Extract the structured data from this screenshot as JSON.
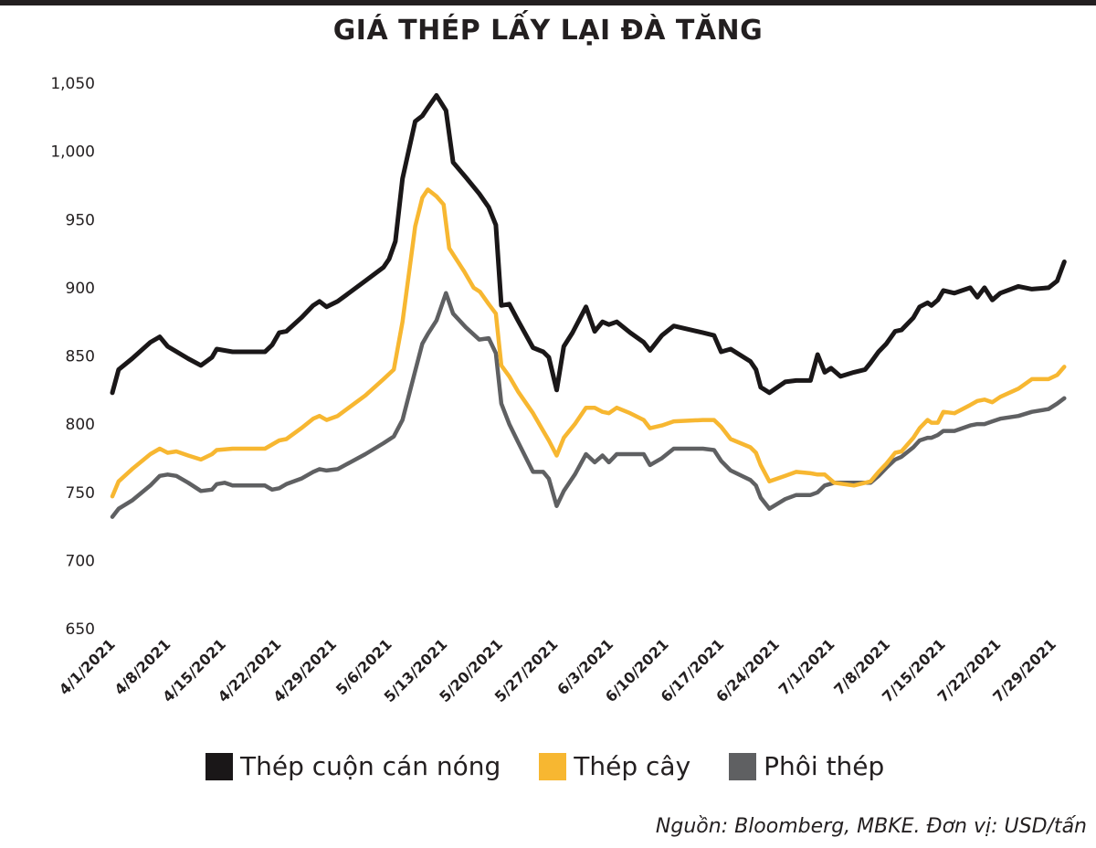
{
  "header": {
    "title": "GIÁ THÉP LẤY LẠI ĐÀ TĂNG"
  },
  "footer": {
    "source": "Nguồn: Bloomberg, MBKE. Đơn vị: USD/tấn"
  },
  "chart_data": {
    "type": "line",
    "title": "GIÁ THÉP LẤY LẠI ĐÀ TĂNG",
    "xlabel": "",
    "ylabel": "",
    "ylim": [
      650,
      1050
    ],
    "yticks": [
      650,
      700,
      750,
      800,
      850,
      900,
      950,
      1000,
      1050
    ],
    "ytick_labels": [
      "650",
      "700",
      "750",
      "800",
      "850",
      "900",
      "950",
      "1,000",
      "1,050"
    ],
    "x_unit": "days since 4/1/2021",
    "xlim": [
      0,
      123
    ],
    "xticks": [
      0,
      7,
      14,
      21,
      28,
      35,
      42,
      49,
      56,
      63,
      70,
      77,
      84,
      91,
      98,
      105,
      112,
      119
    ],
    "xtick_labels": [
      "4/1/2021",
      "4/8/2021",
      "4/15/2021",
      "4/22/2021",
      "4/29/2021",
      "5/6/2021",
      "5/13/2021",
      "5/20/2021",
      "5/27/2021",
      "6/3/2021",
      "6/10/2021",
      "6/17/2021",
      "6/24/2021",
      "7/1/2021",
      "7/8/2021",
      "7/15/2021",
      "7/22/2021",
      "7/29/2021"
    ],
    "grid": false,
    "legend_position": "bottom",
    "series": [
      {
        "name": "Thép cuộn cán nóng",
        "color": "#1a1718",
        "points": [
          [
            0,
            823
          ],
          [
            0.8,
            840
          ],
          [
            2.5,
            848
          ],
          [
            4.8,
            860
          ],
          [
            6,
            864
          ],
          [
            7,
            857
          ],
          [
            9.6,
            848
          ],
          [
            11.2,
            843
          ],
          [
            12.6,
            849
          ],
          [
            13.2,
            855
          ],
          [
            14.2,
            854
          ],
          [
            15.2,
            853
          ],
          [
            19.3,
            853
          ],
          [
            20.2,
            858
          ],
          [
            21.1,
            867
          ],
          [
            22,
            868
          ],
          [
            23.9,
            878
          ],
          [
            25.4,
            887
          ],
          [
            26.2,
            890
          ],
          [
            27.1,
            886
          ],
          [
            28.5,
            890
          ],
          [
            32,
            905
          ],
          [
            34.3,
            915
          ],
          [
            35,
            921
          ],
          [
            35.8,
            934
          ],
          [
            36.7,
            980
          ],
          [
            38.3,
            1022
          ],
          [
            39.2,
            1026
          ],
          [
            39.9,
            1032
          ],
          [
            41,
            1041
          ],
          [
            42.2,
            1030
          ],
          [
            43.1,
            992
          ],
          [
            44.7,
            981
          ],
          [
            46.4,
            969
          ],
          [
            47.6,
            959
          ],
          [
            48.5,
            946
          ],
          [
            49.2,
            887
          ],
          [
            50.2,
            888
          ],
          [
            51.3,
            876
          ],
          [
            53.2,
            856
          ],
          [
            54.5,
            853
          ],
          [
            55.2,
            849
          ],
          [
            56.2,
            825
          ],
          [
            57.1,
            857
          ],
          [
            58.2,
            867
          ],
          [
            59.9,
            886
          ],
          [
            61,
            868
          ],
          [
            62,
            875
          ],
          [
            62.8,
            873
          ],
          [
            63.8,
            875
          ],
          [
            65.5,
            867
          ],
          [
            67.2,
            860
          ],
          [
            68,
            854
          ],
          [
            69.5,
            865
          ],
          [
            71,
            872
          ],
          [
            74.7,
            867
          ],
          [
            76.1,
            865
          ],
          [
            77,
            853
          ],
          [
            78.2,
            855
          ],
          [
            80.7,
            846
          ],
          [
            81.4,
            840
          ],
          [
            82,
            827
          ],
          [
            83.1,
            823
          ],
          [
            85.1,
            831
          ],
          [
            86.5,
            832
          ],
          [
            88.3,
            832
          ],
          [
            89.2,
            851
          ],
          [
            90.1,
            838
          ],
          [
            90.9,
            841
          ],
          [
            92.1,
            835
          ],
          [
            93.8,
            838
          ],
          [
            95.2,
            840
          ],
          [
            95.9,
            845
          ],
          [
            96.9,
            853
          ],
          [
            97.9,
            859
          ],
          [
            99,
            868
          ],
          [
            99.8,
            869
          ],
          [
            101.3,
            878
          ],
          [
            102.1,
            886
          ],
          [
            103.1,
            889
          ],
          [
            103.6,
            887
          ],
          [
            104.4,
            891
          ],
          [
            105.1,
            898
          ],
          [
            106.5,
            896
          ],
          [
            108.5,
            900
          ],
          [
            109.4,
            893
          ],
          [
            110.3,
            900
          ],
          [
            111.3,
            891
          ],
          [
            112.3,
            896
          ],
          [
            114.6,
            901
          ],
          [
            116.3,
            899
          ],
          [
            118.4,
            900
          ],
          [
            119.5,
            905
          ],
          [
            120.4,
            919
          ]
        ]
      },
      {
        "name": "Thép cây",
        "color": "#f7b731",
        "points": [
          [
            0,
            747
          ],
          [
            0.8,
            758
          ],
          [
            2.5,
            767
          ],
          [
            4.8,
            778
          ],
          [
            6,
            782
          ],
          [
            7,
            779
          ],
          [
            8.1,
            780
          ],
          [
            9.6,
            777
          ],
          [
            11.2,
            774
          ],
          [
            12.6,
            778
          ],
          [
            13.2,
            781
          ],
          [
            15.2,
            782
          ],
          [
            19.3,
            782
          ],
          [
            20.2,
            785
          ],
          [
            21.1,
            788
          ],
          [
            22,
            789
          ],
          [
            23.9,
            797
          ],
          [
            25.4,
            804
          ],
          [
            26.2,
            806
          ],
          [
            27.1,
            803
          ],
          [
            28.5,
            806
          ],
          [
            32,
            821
          ],
          [
            34.3,
            833
          ],
          [
            35.6,
            840
          ],
          [
            36.7,
            875
          ],
          [
            38.3,
            945
          ],
          [
            39.2,
            966
          ],
          [
            39.9,
            972
          ],
          [
            41,
            967
          ],
          [
            41.9,
            961
          ],
          [
            42.6,
            929
          ],
          [
            44.5,
            912
          ],
          [
            45.7,
            900
          ],
          [
            46.5,
            897
          ],
          [
            47.6,
            888
          ],
          [
            48.5,
            881
          ],
          [
            49.2,
            843
          ],
          [
            50.2,
            835
          ],
          [
            51.3,
            824
          ],
          [
            53.2,
            808
          ],
          [
            54.5,
            795
          ],
          [
            55.2,
            788
          ],
          [
            56.2,
            777
          ],
          [
            57.1,
            790
          ],
          [
            58.5,
            800
          ],
          [
            59.9,
            812
          ],
          [
            61,
            812
          ],
          [
            62,
            809
          ],
          [
            62.8,
            808
          ],
          [
            63.8,
            812
          ],
          [
            65.5,
            808
          ],
          [
            67.2,
            803
          ],
          [
            68,
            797
          ],
          [
            69.5,
            799
          ],
          [
            71,
            802
          ],
          [
            74.7,
            803
          ],
          [
            76.1,
            803
          ],
          [
            77,
            798
          ],
          [
            78.2,
            789
          ],
          [
            80.7,
            783
          ],
          [
            81.4,
            779
          ],
          [
            82,
            770
          ],
          [
            83.1,
            758
          ],
          [
            85.1,
            762
          ],
          [
            86.5,
            765
          ],
          [
            88.3,
            764
          ],
          [
            89.2,
            763
          ],
          [
            90.1,
            763
          ],
          [
            91.3,
            757
          ],
          [
            93.8,
            755
          ],
          [
            95.2,
            757
          ],
          [
            95.9,
            758
          ],
          [
            96.9,
            765
          ],
          [
            97.9,
            771
          ],
          [
            99,
            779
          ],
          [
            99.8,
            780
          ],
          [
            101.3,
            790
          ],
          [
            102.1,
            797
          ],
          [
            103.1,
            803
          ],
          [
            103.6,
            801
          ],
          [
            104.4,
            801
          ],
          [
            105.1,
            809
          ],
          [
            106.5,
            808
          ],
          [
            108.5,
            814
          ],
          [
            109.4,
            817
          ],
          [
            110.3,
            818
          ],
          [
            111.3,
            816
          ],
          [
            112.3,
            820
          ],
          [
            114.6,
            826
          ],
          [
            116.3,
            833
          ],
          [
            118.4,
            833
          ],
          [
            119.5,
            836
          ],
          [
            120.4,
            842
          ]
        ]
      },
      {
        "name": "Phôi thép",
        "color": "#5f6062",
        "points": [
          [
            0,
            732
          ],
          [
            0.8,
            738
          ],
          [
            2.5,
            744
          ],
          [
            4.8,
            755
          ],
          [
            6,
            762
          ],
          [
            7,
            763
          ],
          [
            8.1,
            762
          ],
          [
            9.6,
            757
          ],
          [
            11.2,
            751
          ],
          [
            12.6,
            752
          ],
          [
            13.2,
            756
          ],
          [
            14.2,
            757
          ],
          [
            15.2,
            755
          ],
          [
            19.3,
            755
          ],
          [
            20.2,
            752
          ],
          [
            21.1,
            753
          ],
          [
            22,
            756
          ],
          [
            23.9,
            760
          ],
          [
            25.4,
            765
          ],
          [
            26.2,
            767
          ],
          [
            27.1,
            766
          ],
          [
            28.5,
            767
          ],
          [
            32,
            778
          ],
          [
            34.3,
            786
          ],
          [
            35.6,
            791
          ],
          [
            36.7,
            803
          ],
          [
            38.3,
            839
          ],
          [
            39.2,
            859
          ],
          [
            39.9,
            866
          ],
          [
            41,
            876
          ],
          [
            42.2,
            896
          ],
          [
            43.1,
            881
          ],
          [
            44.7,
            871
          ],
          [
            46.4,
            862
          ],
          [
            47.6,
            863
          ],
          [
            48.5,
            852
          ],
          [
            49.2,
            815
          ],
          [
            50.2,
            800
          ],
          [
            51.3,
            787
          ],
          [
            53.2,
            765
          ],
          [
            54.5,
            765
          ],
          [
            55.2,
            760
          ],
          [
            56.2,
            740
          ],
          [
            57.1,
            751
          ],
          [
            58.5,
            763
          ],
          [
            59.9,
            778
          ],
          [
            61,
            772
          ],
          [
            62,
            777
          ],
          [
            62.8,
            772
          ],
          [
            63.8,
            778
          ],
          [
            65.5,
            778
          ],
          [
            67.2,
            778
          ],
          [
            68,
            770
          ],
          [
            69.5,
            775
          ],
          [
            71,
            782
          ],
          [
            74.7,
            782
          ],
          [
            76.1,
            781
          ],
          [
            77,
            773
          ],
          [
            78.2,
            766
          ],
          [
            80.7,
            759
          ],
          [
            81.4,
            755
          ],
          [
            82,
            746
          ],
          [
            83.1,
            738
          ],
          [
            85.1,
            745
          ],
          [
            86.5,
            748
          ],
          [
            88.3,
            748
          ],
          [
            89.2,
            750
          ],
          [
            90.1,
            755
          ],
          [
            91.3,
            757
          ],
          [
            93.8,
            757
          ],
          [
            95.2,
            757
          ],
          [
            95.9,
            757
          ],
          [
            96.9,
            762
          ],
          [
            97.9,
            768
          ],
          [
            99,
            774
          ],
          [
            99.8,
            776
          ],
          [
            101.3,
            783
          ],
          [
            102.1,
            788
          ],
          [
            103.1,
            790
          ],
          [
            103.6,
            790
          ],
          [
            104.4,
            792
          ],
          [
            105.1,
            795
          ],
          [
            106.5,
            795
          ],
          [
            108.5,
            799
          ],
          [
            109.4,
            800
          ],
          [
            110.3,
            800
          ],
          [
            111.3,
            802
          ],
          [
            112.3,
            804
          ],
          [
            114.6,
            806
          ],
          [
            116.3,
            809
          ],
          [
            118.4,
            811
          ],
          [
            119.5,
            815
          ],
          [
            120.4,
            819
          ]
        ]
      }
    ]
  }
}
